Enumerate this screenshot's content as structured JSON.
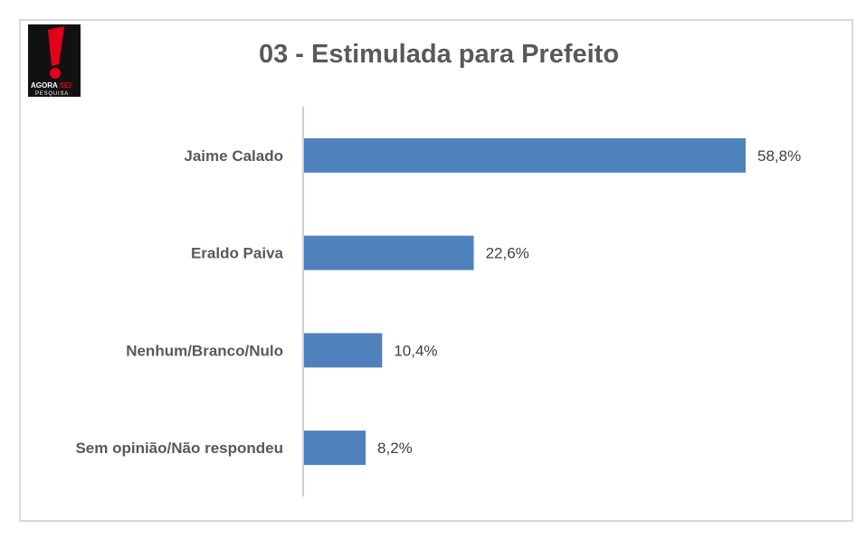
{
  "logo": {
    "line1": "AGORA",
    "line2": "SEI",
    "line3": "PESQUISA"
  },
  "colors": {
    "bar": "#4f81bd",
    "axis": "#bfbfbf",
    "logo_red": "#e3001b"
  },
  "chart_data": {
    "type": "bar",
    "orientation": "horizontal",
    "title": "03 - Estimulada para Prefeito",
    "categories": [
      "Jaime Calado",
      "Eraldo Paiva",
      "Nenhum/Branco/Nulo",
      "Sem opinião/Não respondeu"
    ],
    "values": [
      58.8,
      22.6,
      10.4,
      8.2
    ],
    "value_labels": [
      "58,8%",
      "22,6%",
      "10,4%",
      "8,2%"
    ],
    "xlim": [
      0,
      100
    ],
    "grid": false,
    "legend": "none"
  }
}
